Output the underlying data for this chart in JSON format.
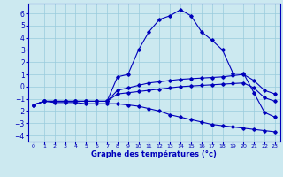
{
  "xlabel": "Graphe des températures (°c)",
  "xlim": [
    -0.5,
    23.5
  ],
  "ylim": [
    -4.5,
    6.8
  ],
  "yticks": [
    -4,
    -3,
    -2,
    -1,
    0,
    1,
    2,
    3,
    4,
    5,
    6
  ],
  "xticks": [
    0,
    1,
    2,
    3,
    4,
    5,
    6,
    7,
    8,
    9,
    10,
    11,
    12,
    13,
    14,
    15,
    16,
    17,
    18,
    19,
    20,
    21,
    22,
    23
  ],
  "bg_color": "#cce9f0",
  "grid_color": "#99ccdd",
  "line_color": "#0000bb",
  "series": {
    "max_curve": {
      "x": [
        0,
        1,
        2,
        3,
        4,
        5,
        6,
        7,
        8,
        9,
        10,
        11,
        12,
        13,
        14,
        15,
        16,
        17,
        18,
        19,
        20,
        21,
        22,
        23
      ],
      "y": [
        -1.5,
        -1.2,
        -1.2,
        -1.2,
        -1.2,
        -1.2,
        -1.2,
        -1.2,
        0.8,
        1.0,
        3.0,
        4.5,
        5.5,
        5.8,
        6.3,
        5.8,
        4.5,
        3.8,
        3.0,
        1.1,
        1.1,
        -0.5,
        -2.1,
        -2.5
      ]
    },
    "min_curve": {
      "x": [
        0,
        1,
        2,
        3,
        4,
        5,
        6,
        7,
        8,
        9,
        10,
        11,
        12,
        13,
        14,
        15,
        16,
        17,
        18,
        19,
        20,
        21,
        22,
        23
      ],
      "y": [
        -1.5,
        -1.2,
        -1.3,
        -1.3,
        -1.3,
        -1.4,
        -1.4,
        -1.4,
        -1.4,
        -1.5,
        -1.6,
        -1.8,
        -2.0,
        -2.3,
        -2.5,
        -2.7,
        -2.9,
        -3.1,
        -3.2,
        -3.3,
        -3.4,
        -3.5,
        -3.6,
        -3.7
      ]
    },
    "mid_curve1": {
      "x": [
        0,
        1,
        2,
        3,
        4,
        5,
        6,
        7,
        8,
        9,
        10,
        11,
        12,
        13,
        14,
        15,
        16,
        17,
        18,
        19,
        20,
        21,
        22,
        23
      ],
      "y": [
        -1.5,
        -1.2,
        -1.2,
        -1.2,
        -1.2,
        -1.2,
        -1.2,
        -1.2,
        -0.3,
        -0.1,
        0.1,
        0.3,
        0.4,
        0.5,
        0.6,
        0.65,
        0.7,
        0.75,
        0.8,
        0.9,
        1.0,
        0.5,
        -0.3,
        -0.6
      ]
    },
    "mid_curve2": {
      "x": [
        0,
        1,
        2,
        3,
        4,
        5,
        6,
        7,
        8,
        9,
        10,
        11,
        12,
        13,
        14,
        15,
        16,
        17,
        18,
        19,
        20,
        21,
        22,
        23
      ],
      "y": [
        -1.5,
        -1.2,
        -1.2,
        -1.2,
        -1.2,
        -1.2,
        -1.2,
        -1.2,
        -0.6,
        -0.5,
        -0.4,
        -0.3,
        -0.2,
        -0.1,
        0.0,
        0.05,
        0.1,
        0.15,
        0.2,
        0.25,
        0.3,
        -0.1,
        -0.9,
        -1.2
      ]
    }
  }
}
